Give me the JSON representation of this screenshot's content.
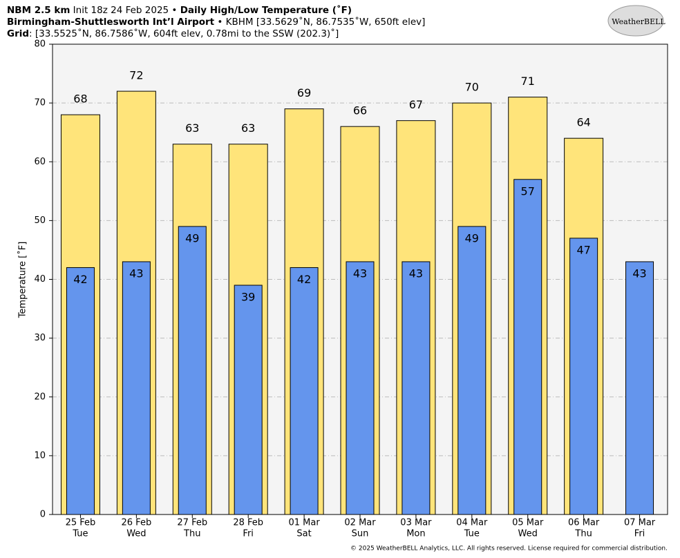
{
  "header": {
    "lines": [
      [
        {
          "text": "NBM 2.5 km",
          "bold": true
        },
        {
          "text": " Init 18z 24 Feb 2025 • ",
          "bold": false
        },
        {
          "text": "Daily High/Low Temperature (˚F)",
          "bold": true
        }
      ],
      [
        {
          "text": "Birmingham-Shuttlesworth Int’l Airport",
          "bold": true
        },
        {
          "text": " • KBHM [33.5629˚N, 86.7535˚W, 650ft elev]",
          "bold": false
        }
      ],
      [
        {
          "text": "Grid",
          "bold": true
        },
        {
          "text": ": [33.5525˚N, 86.7586˚W, 604ft elev, 0.78mi to the SSW (202.3)˚]",
          "bold": false
        }
      ]
    ],
    "logo": "WeatherBELL"
  },
  "chart_data": {
    "type": "bar",
    "ylabel": "Temperature [˚F]",
    "categories": [
      "25 Feb",
      "26 Feb",
      "27 Feb",
      "28 Feb",
      "01 Mar",
      "02 Mar",
      "03 Mar",
      "04 Mar",
      "05 Mar",
      "06 Mar",
      "07 Mar"
    ],
    "weekdays": [
      "Tue",
      "Wed",
      "Thu",
      "Fri",
      "Sat",
      "Sun",
      "Mon",
      "Tue",
      "Wed",
      "Thu",
      "Fri"
    ],
    "series": [
      {
        "color": "#ffe47a",
        "values": [
          68,
          72,
          63,
          63,
          69,
          66,
          67,
          70,
          71,
          64,
          null
        ]
      },
      {
        "color": "#6495ed",
        "values": [
          42,
          43,
          49,
          39,
          42,
          43,
          43,
          49,
          57,
          47,
          43
        ]
      }
    ],
    "ylim": [
      0,
      80
    ],
    "yticks": [
      0,
      10,
      20,
      30,
      40,
      50,
      60,
      70,
      80
    ],
    "grid": true
  },
  "footer": "© 2025 WeatherBELL Analytics, LLC. All rights reserved. License required for commercial distribution."
}
